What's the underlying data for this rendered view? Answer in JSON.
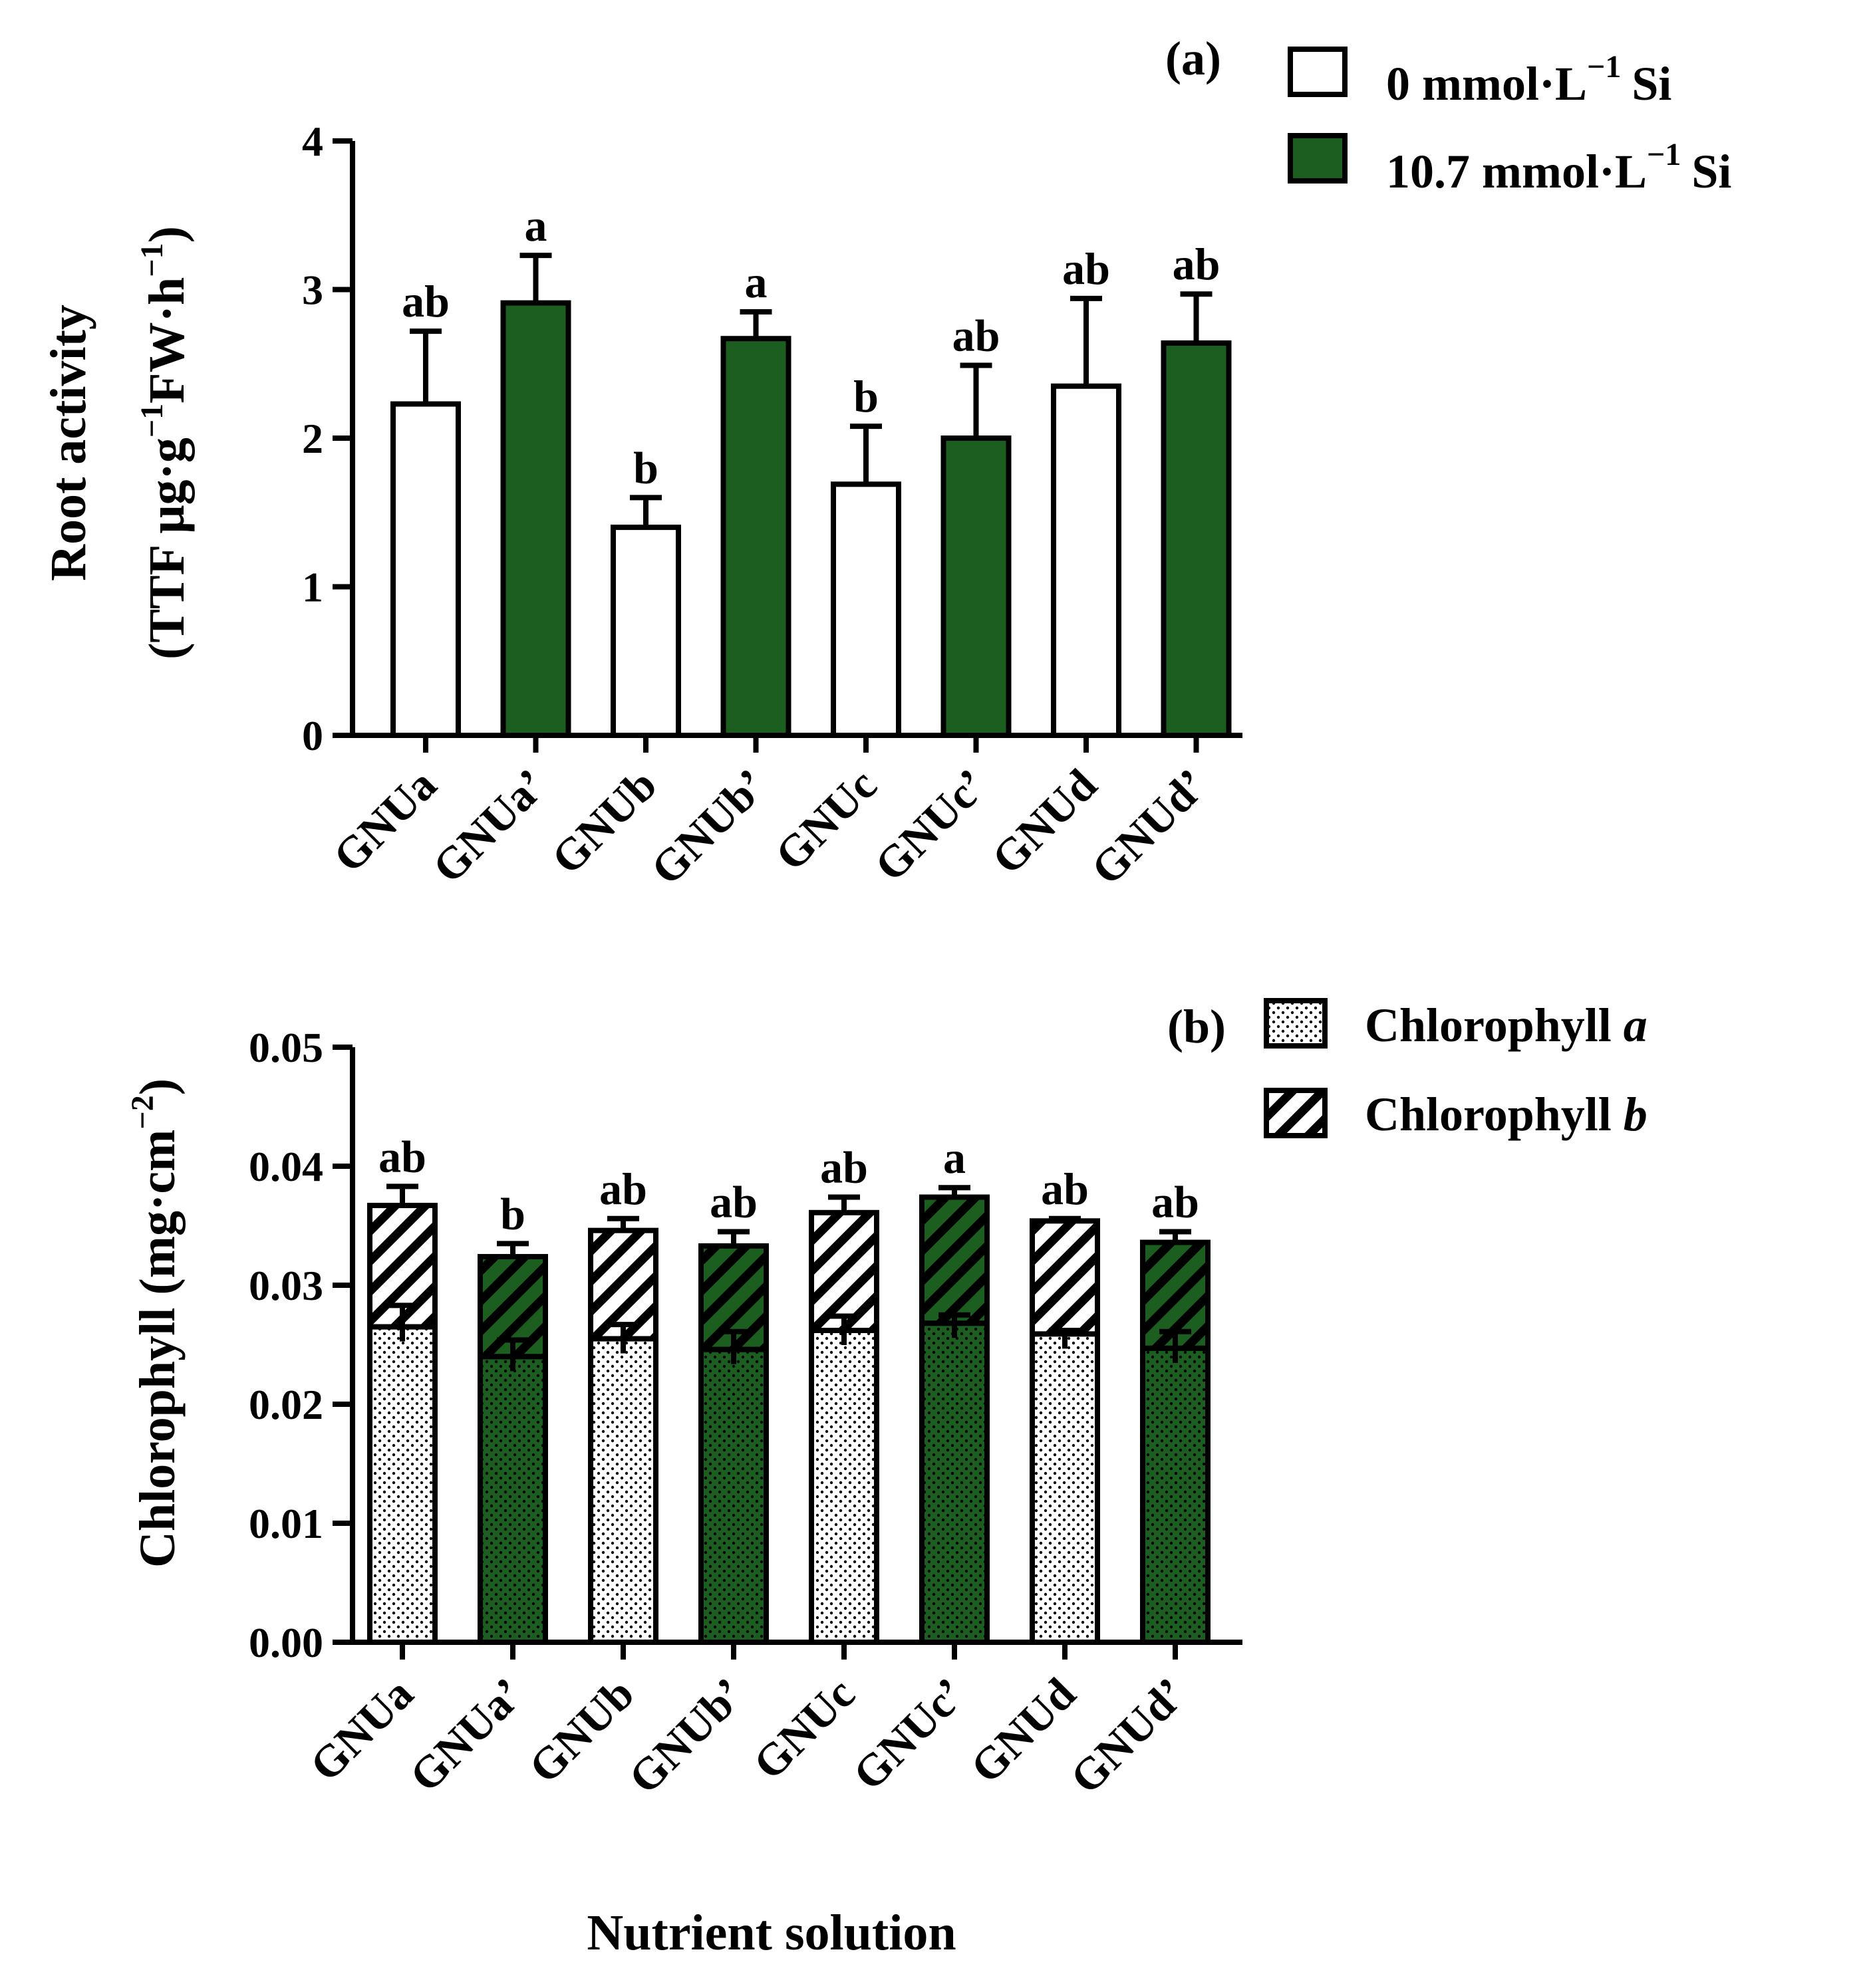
{
  "colors": {
    "green": "#1b5e20",
    "white": "#ffffff",
    "stroke": "#000000"
  },
  "x_axis_title": "Nutrient solution",
  "chart_data": [
    {
      "type": "bar",
      "panel_label": "(a)",
      "title": "",
      "ylabel_line1": "Root activity",
      "ylabel_line2": {
        "base": "(TTF μg·g",
        "sup1": "−1",
        "mid": "FW·h",
        "sup2": "−1",
        "end": ")"
      },
      "xlabel": "Nutrient solution",
      "categories": [
        "GNUa",
        "GNUa'",
        "GNUb",
        "GNUb'",
        "GNUc",
        "GNUc'",
        "GNUd",
        "GNUd'"
      ],
      "values": [
        2.23,
        2.91,
        1.4,
        2.67,
        1.69,
        2.0,
        2.35,
        2.64
      ],
      "errors": [
        0.49,
        0.32,
        0.2,
        0.18,
        0.39,
        0.49,
        0.59,
        0.33
      ],
      "significance": [
        "ab",
        "a",
        "b",
        "a",
        "b",
        "ab",
        "ab",
        "ab"
      ],
      "series_index": [
        0,
        1,
        0,
        1,
        0,
        1,
        0,
        1
      ],
      "ylim": [
        0,
        4
      ],
      "yticks": [
        "0",
        "1",
        "2",
        "3",
        "4"
      ],
      "legend": [
        {
          "label": "0 mmol·L",
          "sup": "−1",
          "suffix": "Si",
          "color": "#ffffff"
        },
        {
          "label": "10.7 mmol·L",
          "sup": "−1",
          "suffix": "Si",
          "color": "#1b5e20"
        }
      ],
      "legend_position": "top-right"
    },
    {
      "type": "stacked-bar",
      "panel_label": "(b)",
      "title": "",
      "ylabel": {
        "base": "Chlorophyll (mg·cm",
        "sup": "−2",
        "end": ")"
      },
      "xlabel": "Nutrient solution",
      "categories": [
        "GNUa",
        "GNUa'",
        "GNUb",
        "GNUb'",
        "GNUc",
        "GNUc'",
        "GNUd",
        "GNUd'"
      ],
      "series": [
        {
          "name": "Chlorophyll a",
          "values": [
            0.0265,
            0.024,
            0.0255,
            0.0246,
            0.0262,
            0.0268,
            0.0259,
            0.0247
          ],
          "errors": [
            0.0018,
            0.0014,
            0.0012,
            0.0015,
            0.0012,
            0.0007,
            0.0003,
            0.0014
          ]
        },
        {
          "name": "Chlorophyll b",
          "values": [
            0.0102,
            0.0084,
            0.0091,
            0.0087,
            0.0099,
            0.0106,
            0.0095,
            0.0089
          ],
          "errors": [
            0.0016,
            0.0011,
            0.001,
            0.0012,
            0.0013,
            0.0008,
            0.0002,
            0.0009
          ]
        }
      ],
      "series_index": [
        0,
        1,
        0,
        1,
        0,
        1,
        0,
        1
      ],
      "significance": [
        "ab",
        "b",
        "ab",
        "ab",
        "ab",
        "a",
        "ab",
        "ab"
      ],
      "ylim": [
        0,
        0.05
      ],
      "yticks": [
        "0.00",
        "0.01",
        "0.02",
        "0.03",
        "0.04",
        "0.05"
      ],
      "legend": [
        {
          "label": "Chlorophyll",
          "italic": "a",
          "pattern": "dots"
        },
        {
          "label": "Chlorophyll",
          "italic": "b",
          "pattern": "hatch"
        }
      ],
      "legend_position": "top-right"
    }
  ]
}
